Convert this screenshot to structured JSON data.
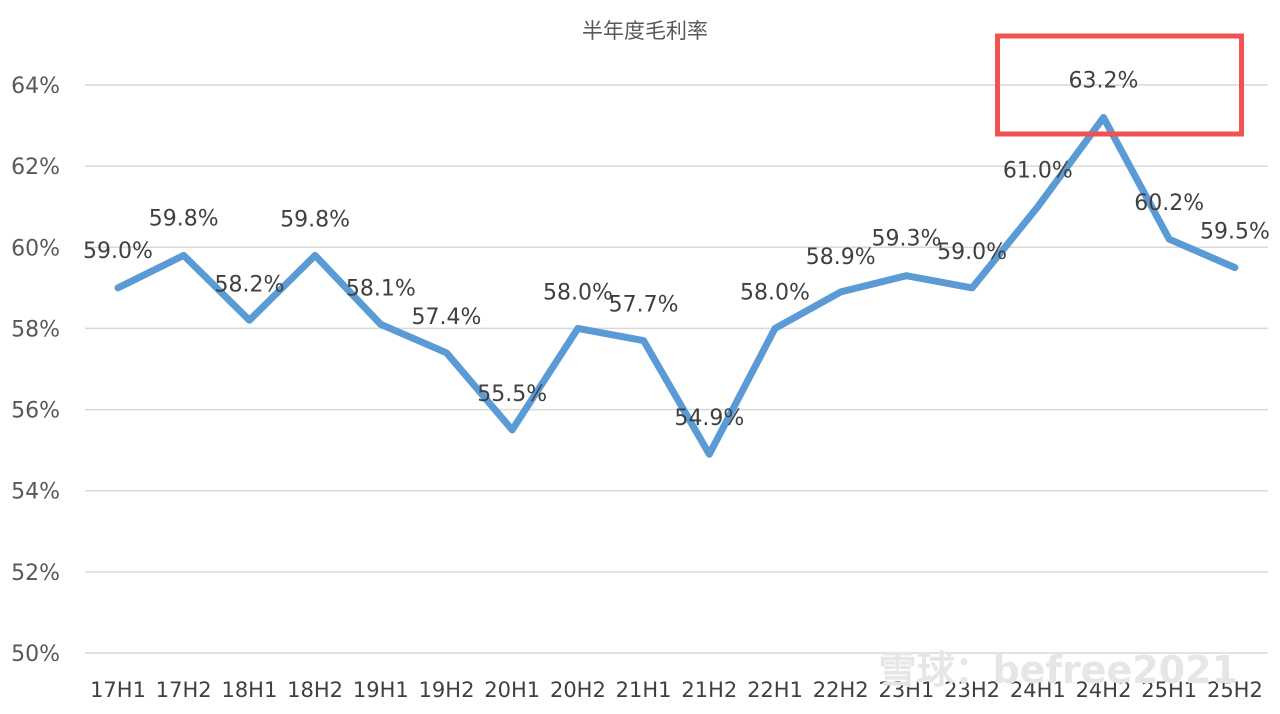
{
  "chart_data": {
    "type": "line",
    "title": "半年度毛利率",
    "xlabel": "",
    "ylabel": "",
    "categories": [
      "17H1",
      "17H2",
      "18H1",
      "18H2",
      "19H1",
      "19H2",
      "20H1",
      "20H2",
      "21H1",
      "21H2",
      "22H1",
      "22H2",
      "23H1",
      "23H2",
      "24H1",
      "24H2",
      "25H1",
      "25H2"
    ],
    "series": [
      {
        "name": "",
        "values": [
          59.0,
          59.8,
          58.2,
          59.8,
          58.1,
          57.4,
          55.5,
          58.0,
          57.7,
          54.9,
          58.0,
          58.9,
          59.3,
          59.0,
          61.0,
          63.2,
          60.2,
          59.5
        ],
        "labels": [
          "59.0%",
          "59.8%",
          "58.2%",
          "59.8%",
          "58.1%",
          "57.4%",
          "55.5%",
          "58.0%",
          "57.7%",
          "54.9%",
          "58.0%",
          "58.9%",
          "59.3%",
          "59.0%",
          "61.0%",
          "63.2%",
          "60.2%",
          "59.5%"
        ]
      }
    ],
    "ylim": [
      50,
      64
    ],
    "yticks": [
      50,
      52,
      54,
      56,
      58,
      60,
      62,
      64
    ],
    "ytick_labels": [
      "50%",
      "52%",
      "54%",
      "56%",
      "58%",
      "60%",
      "62%",
      "64%"
    ],
    "grid": true,
    "legend": "none",
    "highlight_category": "24H2",
    "colors": {
      "series": "#5b9bd5",
      "highlight_box": "#f05252",
      "grid": "#d9d9d9"
    }
  },
  "watermark": "雪球：befree2021"
}
